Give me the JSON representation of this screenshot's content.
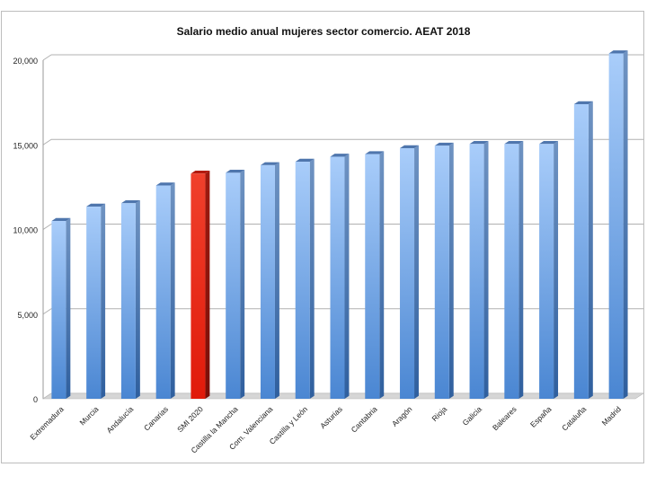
{
  "chart_data": {
    "type": "bar",
    "title": "Salario medio anual mujeres sector comercio. AEAT 2018",
    "xlabel": "",
    "ylabel": "",
    "ylim": [
      0,
      20000
    ],
    "yticks": [
      "0",
      "5,000",
      "10,000",
      "15,000",
      "20,000"
    ],
    "ytick_values": [
      0,
      5000,
      10000,
      15000,
      20000
    ],
    "grid": true,
    "legend": "none",
    "categories": [
      "Extremadura",
      "Murcia",
      "Andalucía",
      "Canarias",
      "SMI 2020",
      "Castilla la Mancha",
      "Com. Valenciana",
      "Castilla y León",
      "Asturias",
      "Cantabria",
      "Aragón",
      "Rioja",
      "Galicia",
      "Baleares",
      "España",
      "Cataluña",
      "Madrid"
    ],
    "values": [
      10500,
      11350,
      11550,
      12600,
      13300,
      13350,
      13800,
      14000,
      14300,
      14450,
      14800,
      14950,
      15050,
      15050,
      15050,
      17400,
      20400
    ],
    "highlight_index": 4,
    "colors": {
      "bar": "#5a94d9",
      "highlight": "#e82315",
      "grid": "#b0b0b0"
    }
  }
}
